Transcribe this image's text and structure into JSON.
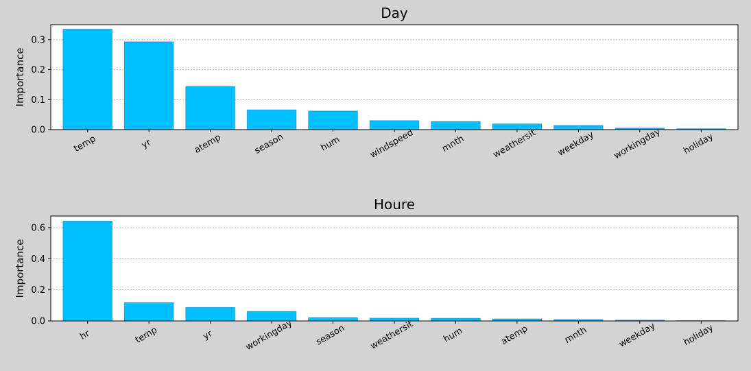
{
  "chart_data": [
    {
      "type": "bar",
      "title": "Day",
      "ylabel": "Importance",
      "xlabel": "",
      "categories": [
        "temp",
        "yr",
        "atemp",
        "season",
        "hum",
        "windspeed",
        "mnth",
        "weathersit",
        "weekday",
        "workingday",
        "holiday"
      ],
      "values": [
        0.335,
        0.293,
        0.144,
        0.066,
        0.062,
        0.03,
        0.027,
        0.019,
        0.014,
        0.005,
        0.003
      ],
      "ylim": [
        0,
        0.35
      ],
      "yticks": [
        "0.0",
        "0.1",
        "0.2",
        "0.3"
      ],
      "ytick_values": [
        0,
        0.1,
        0.2,
        0.3
      ],
      "grid": "y-dotted",
      "colors": {
        "bar": "#00bfff",
        "edge": "#1f77b4"
      }
    },
    {
      "type": "bar",
      "title": "Houre",
      "ylabel": "Importance",
      "xlabel": "",
      "categories": [
        "hr",
        "temp",
        "yr",
        "workingday",
        "season",
        "weathersit",
        "hum",
        "atemp",
        "mnth",
        "weekday",
        "holiday"
      ],
      "values": [
        0.643,
        0.118,
        0.087,
        0.061,
        0.022,
        0.018,
        0.017,
        0.013,
        0.009,
        0.005,
        0.002
      ],
      "ylim": [
        0,
        0.675
      ],
      "yticks": [
        "0.0",
        "0.2",
        "0.4",
        "0.6"
      ],
      "ytick_values": [
        0,
        0.2,
        0.4,
        0.6
      ],
      "grid": "y-dotted",
      "colors": {
        "bar": "#00bfff",
        "edge": "#1f77b4"
      }
    }
  ]
}
